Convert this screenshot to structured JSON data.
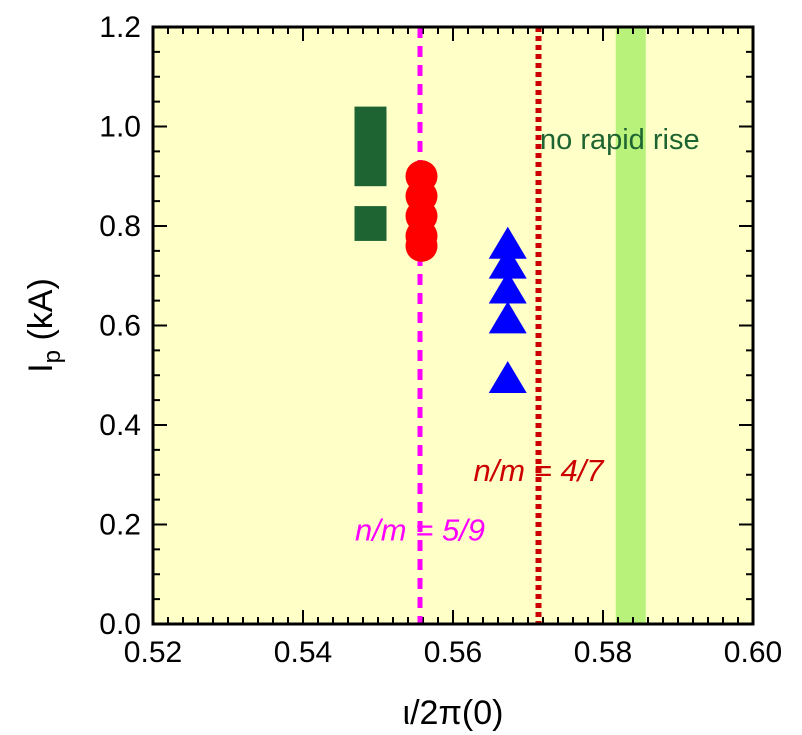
{
  "chart_data": {
    "type": "scatter",
    "title": "",
    "xlabel": "ι/2π(0)",
    "ylabel": "I_p (kA)",
    "ylabel_main": "I",
    "ylabel_sub": "p",
    "ylabel_rest": " (kA)",
    "xlim": [
      0.52,
      0.6
    ],
    "ylim": [
      0.0,
      1.2
    ],
    "x_ticks": [
      0.52,
      0.54,
      0.56,
      0.58,
      0.6
    ],
    "x_tick_labels": [
      "0.52",
      "0.54",
      "0.56",
      "0.58",
      "0.60"
    ],
    "y_ticks": [
      0.0,
      0.2,
      0.4,
      0.6,
      0.8,
      1.0,
      1.2
    ],
    "y_tick_labels": [
      "0.0",
      "0.2",
      "0.4",
      "0.6",
      "0.8",
      "1.0",
      "1.2"
    ],
    "background_color": "#ffffc8",
    "series": [
      {
        "marker": "rect",
        "color": "#1e6432",
        "points": [
          {
            "x": 0.549,
            "y0": 0.88,
            "y1": 1.04
          },
          {
            "x": 0.549,
            "y0": 0.77,
            "y1": 0.84
          }
        ]
      },
      {
        "marker": "circle",
        "color": "#ff0000",
        "points": [
          {
            "x": 0.5558,
            "y": 0.9
          },
          {
            "x": 0.5558,
            "y": 0.86
          },
          {
            "x": 0.5558,
            "y": 0.82
          },
          {
            "x": 0.5558,
            "y": 0.78
          },
          {
            "x": 0.5558,
            "y": 0.76
          }
        ]
      },
      {
        "marker": "triangle",
        "color": "#0000ff",
        "points": [
          {
            "x": 0.5673,
            "y": 0.76
          },
          {
            "x": 0.5673,
            "y": 0.72
          },
          {
            "x": 0.5673,
            "y": 0.67
          },
          {
            "x": 0.5673,
            "y": 0.61
          },
          {
            "x": 0.5673,
            "y": 0.49
          }
        ]
      }
    ],
    "reference_lines": [
      {
        "x": 0.5556,
        "color": "#ff00ff",
        "style": "dashed",
        "label": "n/m = 5/9",
        "label_y": 0.19
      },
      {
        "x": 0.5714,
        "color": "#cc0000",
        "style": "dotted",
        "label": "n/m = 4/7",
        "label_y": 0.31
      }
    ],
    "band": {
      "x0": 0.5817,
      "x1": 0.5857,
      "color": "#b8f27a"
    },
    "annotations": [
      {
        "text": "no rapid rise",
        "x": 0.5716,
        "y": 0.975,
        "color": "#1e6432"
      }
    ]
  }
}
